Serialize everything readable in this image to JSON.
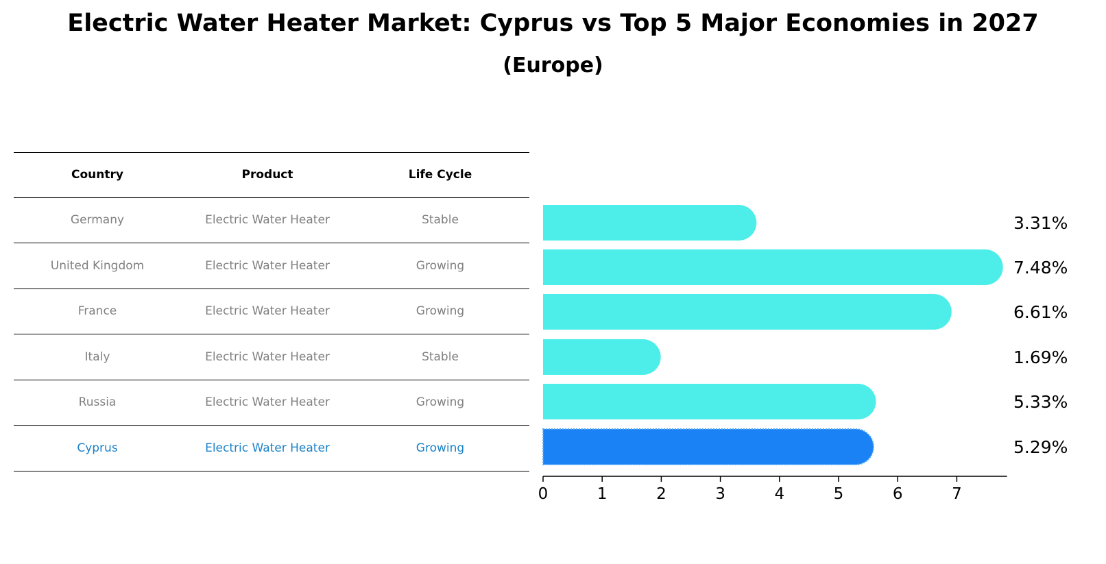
{
  "chart_data": {
    "type": "bar",
    "orientation": "horizontal",
    "title": "Electric Water Heater Market: Cyprus vs Top 5 Major Economies in 2027",
    "subtitle": "(Europe)",
    "categories": [
      "Germany",
      "United Kingdom",
      "France",
      "Italy",
      "Russia",
      "Cyprus"
    ],
    "values": [
      3.31,
      7.48,
      6.61,
      1.69,
      5.33,
      5.29
    ],
    "value_labels": [
      "3.31%",
      "7.48%",
      "6.61%",
      "1.69%",
      "5.33%",
      "5.29%"
    ],
    "xlim": [
      0,
      7.85
    ],
    "xticks": [
      0,
      1,
      2,
      3,
      4,
      5,
      6,
      7
    ],
    "xlabel": "",
    "ylabel": "",
    "highlight_category": "Cyprus",
    "colors": {
      "bar": "#4deeea",
      "highlight_bar": "#1a82f5",
      "highlight_text": "#1a82c8",
      "muted_text": "#808080"
    }
  },
  "table": {
    "headers": [
      "Country",
      "Product",
      "Life Cycle"
    ],
    "rows": [
      [
        "Germany",
        "Electric Water Heater",
        "Stable"
      ],
      [
        "United Kingdom",
        "Electric Water Heater",
        "Growing"
      ],
      [
        "France",
        "Electric Water Heater",
        "Growing"
      ],
      [
        "Italy",
        "Electric Water Heater",
        "Stable"
      ],
      [
        "Russia",
        "Electric Water Heater",
        "Growing"
      ],
      [
        "Cyprus",
        "Electric Water Heater",
        "Growing"
      ]
    ]
  }
}
